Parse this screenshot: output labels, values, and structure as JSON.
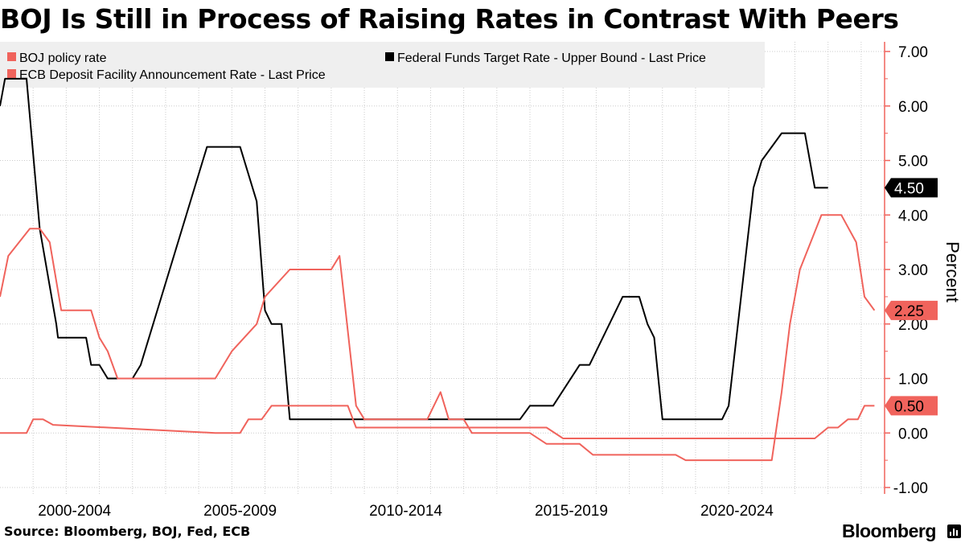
{
  "title": "BOJ Is Still in Process of Raising Rates in Contrast With Peers",
  "source": "Source: Bloomberg, BOJ, Fed, ECB",
  "brand": "Bloomberg",
  "colors": {
    "fed": "#000000",
    "ecb": "#f0635c",
    "boj": "#f0635c",
    "axis": "#f0635c",
    "grid": "#cccccc",
    "legend_bg": "#efefef"
  },
  "chart_data": {
    "type": "line",
    "title": "BOJ Is Still in Process of Raising Rates in Contrast With Peers",
    "xlabel": "",
    "ylabel": "Percent",
    "xlim": [
      1999.0,
      2025.1
    ],
    "ylim": [
      -1.0,
      7.0
    ],
    "y_ticks": [
      "-1.00",
      "0.00",
      "1.00",
      "2.00",
      "3.00",
      "4.00",
      "5.00",
      "6.00",
      "7.00"
    ],
    "x_tick_labels": [
      {
        "x": 2001.25,
        "label": "2000-2004"
      },
      {
        "x": 2006.25,
        "label": "2005-2009"
      },
      {
        "x": 2011.25,
        "label": "2010-2014"
      },
      {
        "x": 2016.25,
        "label": "2015-2019"
      },
      {
        "x": 2021.25,
        "label": "2020-2024"
      }
    ],
    "legend": [
      "BOJ policy rate",
      "Federal Funds Target Rate - Upper Bound - Last Price",
      "ECB Deposit Facility Announcement Rate - Last Price"
    ],
    "series": [
      {
        "name": "Federal Funds Target Rate - Upper Bound - Last Price",
        "key": "fed",
        "last_label": "4.50",
        "points": [
          [
            1999.0,
            6.0
          ],
          [
            1999.15,
            6.5
          ],
          [
            1999.8,
            6.5
          ],
          [
            2000.2,
            3.75
          ],
          [
            2000.7,
            2.0
          ],
          [
            2000.75,
            1.75
          ],
          [
            2001.6,
            1.75
          ],
          [
            2001.75,
            1.25
          ],
          [
            2002.0,
            1.25
          ],
          [
            2002.25,
            1.0
          ],
          [
            2003.0,
            1.0
          ],
          [
            2003.25,
            1.25
          ],
          [
            2005.25,
            5.25
          ],
          [
            2006.25,
            5.25
          ],
          [
            2006.75,
            4.25
          ],
          [
            2007.0,
            2.25
          ],
          [
            2007.2,
            2.0
          ],
          [
            2007.5,
            2.0
          ],
          [
            2007.75,
            0.25
          ],
          [
            2014.7,
            0.25
          ],
          [
            2015.0,
            0.5
          ],
          [
            2015.7,
            0.5
          ],
          [
            2016.5,
            1.25
          ],
          [
            2016.8,
            1.25
          ],
          [
            2017.8,
            2.5
          ],
          [
            2018.3,
            2.5
          ],
          [
            2018.55,
            2.0
          ],
          [
            2018.75,
            1.75
          ],
          [
            2019.0,
            0.25
          ],
          [
            2020.8,
            0.25
          ],
          [
            2021.0,
            0.5
          ],
          [
            2021.75,
            4.5
          ],
          [
            2022.0,
            5.0
          ],
          [
            2022.6,
            5.5
          ],
          [
            2023.3,
            5.5
          ],
          [
            2023.6,
            4.5
          ],
          [
            2024.0,
            4.5
          ]
        ]
      },
      {
        "name": "ECB Deposit Facility Announcement Rate - Last Price",
        "key": "ecb",
        "last_label": "2.25",
        "points": [
          [
            1999.0,
            2.5
          ],
          [
            1999.25,
            3.25
          ],
          [
            1999.9,
            3.75
          ],
          [
            2000.2,
            3.75
          ],
          [
            2000.5,
            3.5
          ],
          [
            2000.85,
            2.25
          ],
          [
            2001.0,
            2.25
          ],
          [
            2001.75,
            2.25
          ],
          [
            2002.0,
            1.75
          ],
          [
            2002.25,
            1.5
          ],
          [
            2002.55,
            1.0
          ],
          [
            2004.0,
            1.0
          ],
          [
            2005.5,
            1.0
          ],
          [
            2006.0,
            1.5
          ],
          [
            2006.75,
            2.0
          ],
          [
            2007.0,
            2.5
          ],
          [
            2007.75,
            3.0
          ],
          [
            2009.0,
            3.0
          ],
          [
            2009.25,
            3.25
          ],
          [
            2009.75,
            0.5
          ],
          [
            2010.0,
            0.25
          ],
          [
            2011.9,
            0.25
          ],
          [
            2012.3,
            0.75
          ],
          [
            2012.55,
            0.25
          ],
          [
            2013.0,
            0.25
          ],
          [
            2013.25,
            0.0
          ],
          [
            2015.0,
            0.0
          ],
          [
            2015.5,
            -0.2
          ],
          [
            2016.5,
            -0.2
          ],
          [
            2016.9,
            -0.4
          ],
          [
            2019.0,
            -0.4
          ],
          [
            2019.4,
            -0.4
          ],
          [
            2019.7,
            -0.5
          ],
          [
            2022.3,
            -0.5
          ],
          [
            2022.6,
            0.75
          ],
          [
            2022.85,
            2.0
          ],
          [
            2023.15,
            3.0
          ],
          [
            2023.8,
            4.0
          ],
          [
            2024.4,
            4.0
          ],
          [
            2024.85,
            3.5
          ],
          [
            2025.1,
            2.5
          ],
          [
            2025.4,
            2.25
          ]
        ]
      },
      {
        "name": "BOJ policy rate",
        "key": "boj",
        "last_label": "0.50",
        "points": [
          [
            1999.0,
            0.0
          ],
          [
            1999.8,
            0.0
          ],
          [
            2000.0,
            0.25
          ],
          [
            2000.3,
            0.25
          ],
          [
            2000.6,
            0.15
          ],
          [
            2005.5,
            0.001
          ],
          [
            2006.25,
            0.001
          ],
          [
            2006.5,
            0.25
          ],
          [
            2006.9,
            0.25
          ],
          [
            2007.2,
            0.5
          ],
          [
            2009.5,
            0.5
          ],
          [
            2009.75,
            0.1
          ],
          [
            2015.0,
            0.1
          ],
          [
            2015.5,
            0.1
          ],
          [
            2016.0,
            -0.1
          ],
          [
            2023.0,
            -0.1
          ],
          [
            2023.6,
            -0.1
          ],
          [
            2024.0,
            0.1
          ],
          [
            2024.3,
            0.1
          ],
          [
            2024.6,
            0.25
          ],
          [
            2024.9,
            0.25
          ],
          [
            2025.1,
            0.5
          ],
          [
            2025.4,
            0.5
          ]
        ]
      }
    ]
  }
}
